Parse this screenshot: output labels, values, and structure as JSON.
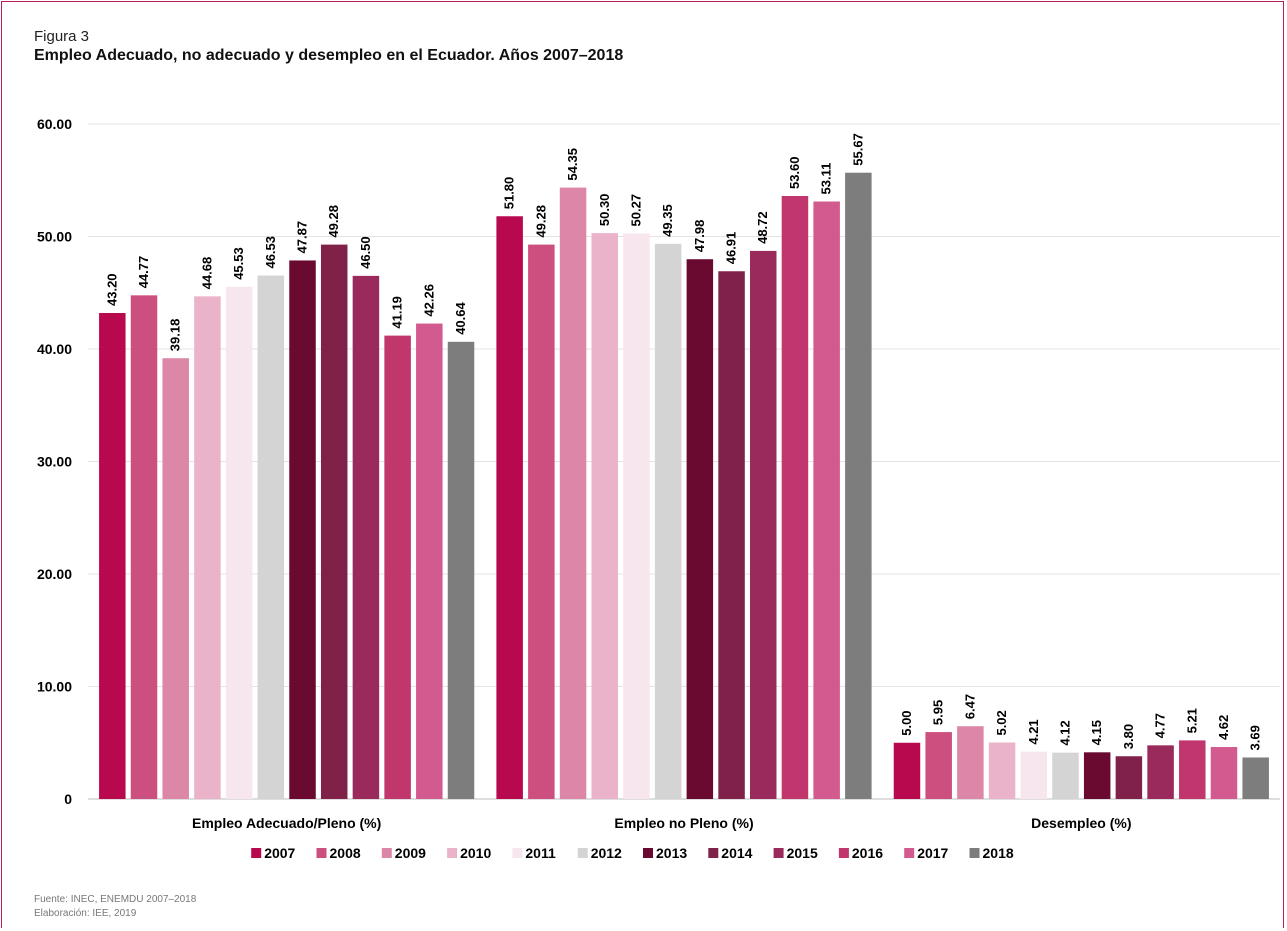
{
  "figure": {
    "label": "Figura 3",
    "title": "Empleo Adecuado, no adecuado y desempleo en el Ecuador. Años 2007–2018"
  },
  "footer": {
    "source": "Fuente: INEC, ENEMDU 2007–2018",
    "elaboration": "Elaboración: IEE, 2019"
  },
  "chart_data": {
    "type": "bar",
    "title": "Empleo Adecuado, no adecuado y desempleo en el Ecuador. Años 2007–2018",
    "xlabel": "",
    "ylabel": "",
    "categories": [
      "Empleo Adecuado/Pleno (%)",
      "Empleo no Pleno (%)",
      "Desempleo (%)"
    ],
    "ylim": [
      0,
      60
    ],
    "yticks": [
      "0",
      "10.00",
      "20.00",
      "30.00",
      "40.00",
      "50.00",
      "60.00"
    ],
    "grid": true,
    "legend_position": "bottom",
    "series": [
      {
        "name": "2007",
        "color": "#b8094f",
        "values": [
          43.2,
          51.8,
          5.0
        ],
        "labels": [
          "43.20",
          "51.80",
          "5.00"
        ]
      },
      {
        "name": "2008",
        "color": "#cd4f80",
        "values": [
          44.77,
          49.28,
          5.95
        ],
        "labels": [
          "44.77",
          "49.28",
          "5.95"
        ]
      },
      {
        "name": "2009",
        "color": "#dc86a8",
        "values": [
          39.18,
          54.35,
          6.47
        ],
        "labels": [
          "39.18",
          "54.35",
          "6.47"
        ]
      },
      {
        "name": "2010",
        "color": "#ebb3c9",
        "values": [
          44.68,
          50.3,
          5.02
        ],
        "labels": [
          "44.68",
          "50.30",
          "5.02"
        ]
      },
      {
        "name": "2011",
        "color": "#f8e6ee",
        "values": [
          45.53,
          50.27,
          4.21
        ],
        "labels": [
          "45.53",
          "50.27",
          "4.21"
        ]
      },
      {
        "name": "2012",
        "color": "#d4d4d4",
        "values": [
          46.53,
          49.35,
          4.12
        ],
        "labels": [
          "46.53",
          "49.35",
          "4.12"
        ]
      },
      {
        "name": "2013",
        "color": "#6b0a30",
        "values": [
          47.87,
          47.98,
          4.15
        ],
        "labels": [
          "47.87",
          "47.98",
          "4.15"
        ]
      },
      {
        "name": "2014",
        "color": "#80214a",
        "values": [
          49.28,
          46.91,
          3.8
        ],
        "labels": [
          "49.28",
          "46.91",
          "3.80"
        ]
      },
      {
        "name": "2015",
        "color": "#9b2a5c",
        "values": [
          46.5,
          48.72,
          4.77
        ],
        "labels": [
          "46.50",
          "48.72",
          "4.77"
        ]
      },
      {
        "name": "2016",
        "color": "#c2366e",
        "values": [
          41.19,
          53.6,
          5.21
        ],
        "labels": [
          "41.19",
          "53.60",
          "5.21"
        ]
      },
      {
        "name": "2017",
        "color": "#d25a8e",
        "values": [
          42.26,
          53.11,
          4.62
        ],
        "labels": [
          "42.26",
          "53.11",
          "4.62"
        ]
      },
      {
        "name": "2018",
        "color": "#7d7d7d",
        "values": [
          40.64,
          55.67,
          3.69
        ],
        "labels": [
          "40.64",
          "55.67",
          "3.69"
        ]
      }
    ]
  }
}
